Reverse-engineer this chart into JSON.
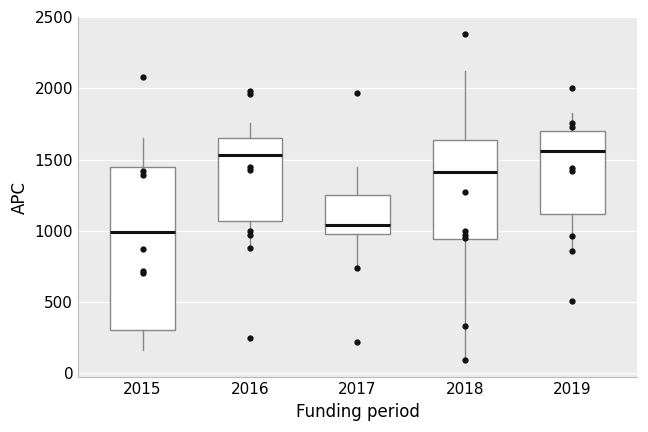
{
  "years": [
    "2015",
    "2016",
    "2017",
    "2018",
    "2019"
  ],
  "boxes": [
    {
      "q1": 300,
      "median": 990,
      "q3": 1450,
      "whisker_low": 160,
      "whisker_high": 1650,
      "outliers": [
        700,
        720,
        870,
        1390,
        1420,
        2080
      ]
    },
    {
      "q1": 1070,
      "median": 1530,
      "q3": 1650,
      "whisker_low": 880,
      "whisker_high": 1760,
      "outliers": [
        250,
        880,
        970,
        1000,
        1430,
        1450,
        1960,
        1980
      ]
    },
    {
      "q1": 980,
      "median": 1040,
      "q3": 1250,
      "whisker_low": 730,
      "whisker_high": 1450,
      "outliers": [
        220,
        740,
        1970
      ]
    },
    {
      "q1": 940,
      "median": 1410,
      "q3": 1640,
      "whisker_low": 90,
      "whisker_high": 2120,
      "outliers": [
        90,
        330,
        950,
        970,
        1000,
        1270,
        2380
      ]
    },
    {
      "q1": 1120,
      "median": 1560,
      "q3": 1700,
      "whisker_low": 850,
      "whisker_high": 1830,
      "outliers": [
        510,
        860,
        960,
        1420,
        1440,
        1730,
        1760,
        2000
      ]
    }
  ],
  "xlabel": "Funding period",
  "ylabel": "APC",
  "ylim": [
    -30,
    2500
  ],
  "yticks": [
    0,
    500,
    1000,
    1500,
    2000,
    2500
  ],
  "box_color": "white",
  "box_edgecolor": "#888888",
  "median_color": "#111111",
  "whisker_color": "#888888",
  "outlier_color": "#111111",
  "grid_color": "#ffffff",
  "panel_bg": "#ebebeb",
  "background_color": "white",
  "box_width": 0.6,
  "linewidth": 1.0,
  "median_linewidth": 2.2
}
